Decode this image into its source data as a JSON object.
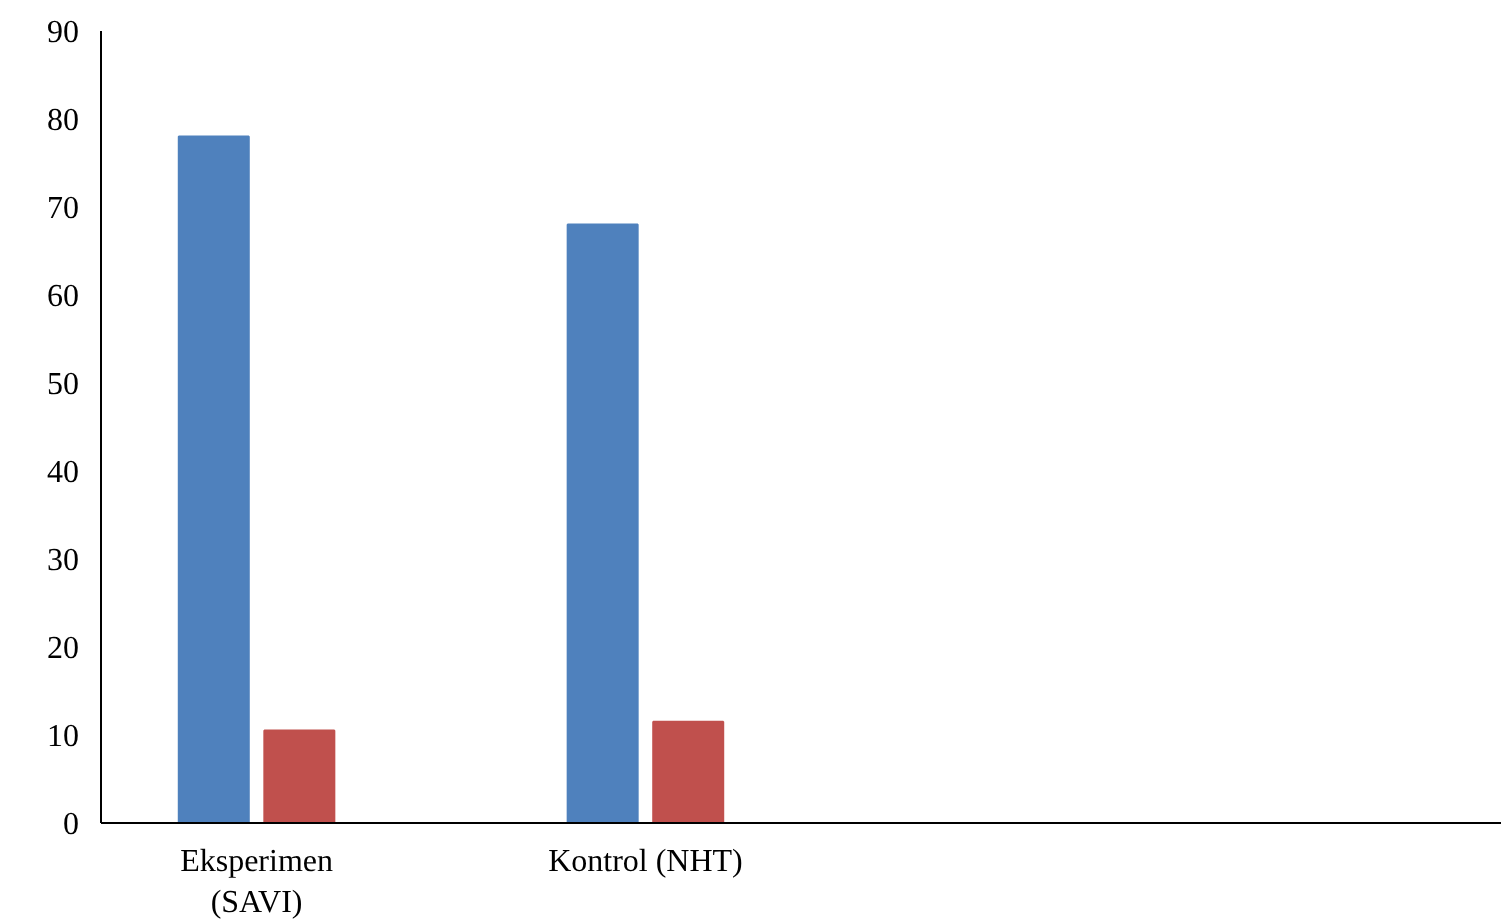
{
  "chart_data": {
    "type": "bar",
    "categories": [
      "Eksperimen (SAVI)",
      "Kontrol (NHT)"
    ],
    "series": [
      {
        "color": "#4f81bd",
        "values": [
          78,
          68
        ]
      },
      {
        "color": "#c0504d",
        "values": [
          10.5,
          11.5
        ]
      }
    ],
    "ylim": [
      0,
      90
    ],
    "yticks": [
      0,
      10,
      20,
      30,
      40,
      50,
      60,
      70,
      80,
      90
    ],
    "grid": false
  }
}
